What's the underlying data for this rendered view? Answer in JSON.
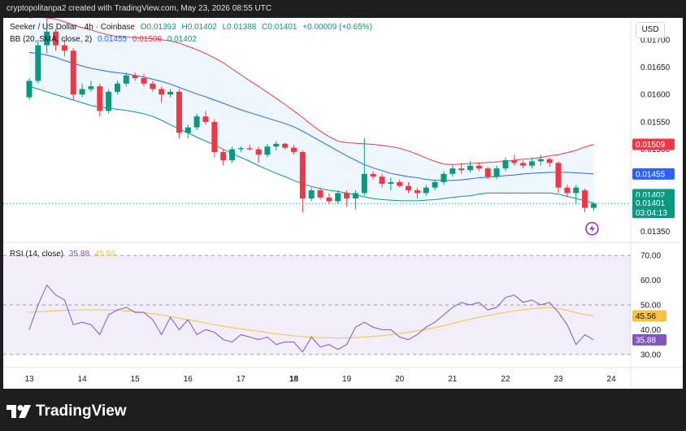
{
  "header": {
    "snapshot_text": "cryptopolitanpa2 created with TradingView.com, May 23, 2026 08:55 UTC"
  },
  "legend": {
    "symbol": "Seeker / US Dollar · 4h · Coinbase",
    "ohlc": {
      "o": "O0.01393",
      "h": "H0.01402",
      "l": "L0.01388",
      "c": "C0.01401",
      "chg": "+0.00009 (+0.65%)"
    },
    "bb_label": "BB (20, SMA, close, 2)",
    "bb_values": {
      "basis": "0.01455",
      "upper": "0.01509",
      "lower": "0.01402"
    }
  },
  "currency_button": "USD",
  "rsi_legend": {
    "label": "RSI (14, close)",
    "rsi": "35.88",
    "ma": "45.56"
  },
  "logo_text": "TradingView",
  "colors": {
    "up": "#089981",
    "down": "#f23645",
    "basis": "#2962ff",
    "upper": "#f23645",
    "lower": "#089981",
    "rsi": "#7e57c2",
    "rsi_ma": "#f5c242"
  },
  "chart_data": [
    {
      "type": "candlestick",
      "title": "Seeker / US Dollar · 4h · Coinbase",
      "ylim": [
        0.0133,
        0.0174
      ],
      "y_ticks": [
        "0.01700",
        "0.01650",
        "0.01600",
        "0.01550",
        "0.01500",
        "0.01450",
        "0.01400",
        "0.01350"
      ],
      "y_tick_values": [
        0.017,
        0.0165,
        0.016,
        0.0155,
        0.015,
        0.0145,
        0.014,
        0.0135
      ],
      "x_ticks": [
        "13",
        "14",
        "15",
        "16",
        "17",
        "18",
        "19",
        "20",
        "21",
        "22",
        "23",
        "24"
      ],
      "x_tick_values": [
        0,
        6,
        12,
        18,
        24,
        30,
        36,
        42,
        48,
        54,
        60,
        66
      ],
      "price_badges": {
        "upper": "0.01509",
        "basis": "0.01455",
        "high": "0.01402",
        "close": "0.01401",
        "countdown": "03:04:13"
      },
      "candles": [
        [
          0.01595,
          0.0163,
          0.0159,
          0.01625
        ],
        [
          0.01625,
          0.017,
          0.0162,
          0.0169
        ],
        [
          0.0169,
          0.0174,
          0.01675,
          0.01715
        ],
        [
          0.01715,
          0.0172,
          0.0168,
          0.0169
        ],
        [
          0.0169,
          0.017,
          0.0167,
          0.0168
        ],
        [
          0.0168,
          0.01685,
          0.0159,
          0.016
        ],
        [
          0.016,
          0.0162,
          0.01595,
          0.0161
        ],
        [
          0.0161,
          0.01625,
          0.01605,
          0.01615
        ],
        [
          0.01615,
          0.0162,
          0.0156,
          0.0157
        ],
        [
          0.0157,
          0.0161,
          0.01565,
          0.01605
        ],
        [
          0.01605,
          0.01625,
          0.016,
          0.0162
        ],
        [
          0.0162,
          0.0164,
          0.01615,
          0.01635
        ],
        [
          0.01635,
          0.0164,
          0.01625,
          0.0163
        ],
        [
          0.0163,
          0.01638,
          0.01615,
          0.0162
        ],
        [
          0.0162,
          0.01625,
          0.01605,
          0.0161
        ],
        [
          0.0161,
          0.01615,
          0.01585,
          0.016
        ],
        [
          0.016,
          0.0161,
          0.01595,
          0.01605
        ],
        [
          0.01605,
          0.0161,
          0.0152,
          0.0153
        ],
        [
          0.0153,
          0.01545,
          0.0152,
          0.0154
        ],
        [
          0.0154,
          0.01565,
          0.01535,
          0.0156
        ],
        [
          0.0156,
          0.0157,
          0.01545,
          0.0155
        ],
        [
          0.0155,
          0.01555,
          0.01485,
          0.01495
        ],
        [
          0.01495,
          0.015,
          0.0147,
          0.0148
        ],
        [
          0.0148,
          0.01505,
          0.01475,
          0.015
        ],
        [
          0.015,
          0.01505,
          0.01495,
          0.01502
        ],
        [
          0.01502,
          0.01508,
          0.01497,
          0.015
        ],
        [
          0.015,
          0.01505,
          0.01475,
          0.0149
        ],
        [
          0.0149,
          0.0151,
          0.01485,
          0.01505
        ],
        [
          0.01505,
          0.01515,
          0.01498,
          0.0151
        ],
        [
          0.0151,
          0.01512,
          0.015,
          0.01503
        ],
        [
          0.01503,
          0.01508,
          0.0149,
          0.01495
        ],
        [
          0.01495,
          0.01498,
          0.01385,
          0.0141
        ],
        [
          0.0141,
          0.0143,
          0.01405,
          0.01425
        ],
        [
          0.01425,
          0.0143,
          0.01408,
          0.01412
        ],
        [
          0.01412,
          0.0142,
          0.014,
          0.01405
        ],
        [
          0.01405,
          0.01425,
          0.014,
          0.0142
        ],
        [
          0.0142,
          0.01425,
          0.01395,
          0.0141
        ],
        [
          0.0141,
          0.01425,
          0.0139,
          0.0142
        ],
        [
          0.0142,
          0.0152,
          0.01415,
          0.01455
        ],
        [
          0.01455,
          0.0146,
          0.01445,
          0.0145
        ],
        [
          0.0145,
          0.01455,
          0.0143,
          0.01437
        ],
        [
          0.01437,
          0.01448,
          0.01425,
          0.0144
        ],
        [
          0.0144,
          0.01445,
          0.0143,
          0.01433
        ],
        [
          0.01433,
          0.0144,
          0.0142,
          0.01425
        ],
        [
          0.01425,
          0.0143,
          0.0141,
          0.0142
        ],
        [
          0.0142,
          0.01435,
          0.01415,
          0.0143
        ],
        [
          0.0143,
          0.01445,
          0.01425,
          0.0144
        ],
        [
          0.0144,
          0.0146,
          0.01435,
          0.01455
        ],
        [
          0.01455,
          0.0147,
          0.0145,
          0.01465
        ],
        [
          0.01465,
          0.01475,
          0.01455,
          0.01462
        ],
        [
          0.01462,
          0.01478,
          0.01458,
          0.0147
        ],
        [
          0.0147,
          0.01475,
          0.0146,
          0.01465
        ],
        [
          0.01465,
          0.01468,
          0.01445,
          0.0145
        ],
        [
          0.0145,
          0.0147,
          0.01445,
          0.01465
        ],
        [
          0.01465,
          0.01485,
          0.0146,
          0.0148
        ],
        [
          0.0148,
          0.0149,
          0.0147,
          0.01475
        ],
        [
          0.01475,
          0.0148,
          0.01465,
          0.0147
        ],
        [
          0.0147,
          0.01485,
          0.01465,
          0.01478
        ],
        [
          0.01478,
          0.0149,
          0.0147,
          0.01482
        ],
        [
          0.01482,
          0.01485,
          0.01468,
          0.01475
        ],
        [
          0.01475,
          0.01478,
          0.0142,
          0.0143
        ],
        [
          0.0143,
          0.01435,
          0.01412,
          0.0142
        ],
        [
          0.0142,
          0.01435,
          0.014,
          0.0143
        ],
        [
          0.01425,
          0.01428,
          0.01385,
          0.01393
        ],
        [
          0.01393,
          0.01402,
          0.01388,
          0.01401
        ]
      ],
      "bb_upper": [
        0.0174,
        0.01742,
        0.0174,
        0.01738,
        0.01733,
        0.01727,
        0.01722,
        0.01718,
        0.01713,
        0.01709,
        0.01706,
        0.01705,
        0.01704,
        0.01703,
        0.01702,
        0.017,
        0.01698,
        0.01694,
        0.01688,
        0.01682,
        0.01675,
        0.01667,
        0.01658,
        0.01647,
        0.01636,
        0.01625,
        0.01615,
        0.01604,
        0.01593,
        0.01582,
        0.0157,
        0.01558,
        0.01545,
        0.01533,
        0.01523,
        0.01515,
        0.01512,
        0.01511,
        0.0151,
        0.01509,
        0.01507,
        0.01505,
        0.01502,
        0.01497,
        0.01491,
        0.01484,
        0.01478,
        0.01473,
        0.01472,
        0.01473,
        0.01474,
        0.01475,
        0.01476,
        0.01477,
        0.01478,
        0.0148,
        0.01482,
        0.01483,
        0.01485,
        0.01488,
        0.0149,
        0.01494,
        0.01498,
        0.01504,
        0.01509
      ],
      "bb_basis": [
        0.01677,
        0.01675,
        0.01672,
        0.01668,
        0.01662,
        0.01657,
        0.01652,
        0.01648,
        0.01645,
        0.01642,
        0.0164,
        0.01638,
        0.01635,
        0.01632,
        0.01628,
        0.01624,
        0.01619,
        0.01613,
        0.01607,
        0.01601,
        0.01596,
        0.0159,
        0.01584,
        0.01578,
        0.01572,
        0.01567,
        0.01562,
        0.01557,
        0.01552,
        0.01547,
        0.01541,
        0.01533,
        0.01524,
        0.01515,
        0.01506,
        0.01497,
        0.01488,
        0.0148,
        0.01472,
        0.01466,
        0.01461,
        0.01456,
        0.01453,
        0.0145,
        0.01448,
        0.01445,
        0.01443,
        0.01443,
        0.01443,
        0.01444,
        0.01446,
        0.01448,
        0.01449,
        0.0145,
        0.01452,
        0.01453,
        0.01455,
        0.01456,
        0.01457,
        0.01458,
        0.01458,
        0.01458,
        0.01457,
        0.01456,
        0.01455
      ],
      "bb_lower": [
        0.01615,
        0.0161,
        0.01605,
        0.016,
        0.01595,
        0.0159,
        0.01585,
        0.0158,
        0.01577,
        0.01575,
        0.01573,
        0.01571,
        0.01568,
        0.01565,
        0.0156,
        0.01553,
        0.01545,
        0.01537,
        0.0153,
        0.01522,
        0.01515,
        0.01508,
        0.015,
        0.01492,
        0.01485,
        0.01478,
        0.0147,
        0.01463,
        0.01456,
        0.0145,
        0.01443,
        0.01437,
        0.01432,
        0.01428,
        0.01425,
        0.01423,
        0.0142,
        0.01417,
        0.01413,
        0.0141,
        0.01408,
        0.01407,
        0.01406,
        0.01406,
        0.01406,
        0.01407,
        0.01408,
        0.0141,
        0.01412,
        0.01414,
        0.01415,
        0.01418,
        0.0142,
        0.0142,
        0.0142,
        0.0142,
        0.0142,
        0.0142,
        0.0142,
        0.0142,
        0.01418,
        0.01414,
        0.0141,
        0.01406,
        0.01402
      ],
      "last_price": 0.01401
    },
    {
      "type": "line",
      "title": "RSI (14, close)",
      "ylim": [
        26,
        72
      ],
      "y_ticks": [
        "70.00",
        "60.00",
        "50.00",
        "40.00",
        "30.00"
      ],
      "y_tick_values": [
        70,
        60,
        50,
        40,
        30
      ],
      "levels": {
        "upper": 70,
        "middle": 50,
        "lower": 30
      },
      "value_badges": {
        "ma": "45.56",
        "rsi": "35.88"
      },
      "series": [
        {
          "name": "RSI",
          "values": [
            40,
            50,
            58,
            54,
            52,
            42,
            43,
            42,
            38,
            46,
            48,
            49,
            47,
            47,
            44,
            38,
            45,
            40,
            44,
            38,
            40,
            39,
            36,
            35,
            38,
            37,
            36,
            37,
            34,
            35,
            35,
            31,
            37,
            33,
            34,
            32,
            34,
            41,
            43,
            41,
            40,
            40,
            37,
            36,
            38,
            41,
            43,
            46,
            49,
            51,
            50,
            51,
            48,
            49,
            53,
            54,
            51,
            52,
            50,
            51,
            47,
            42,
            34,
            38,
            35.88
          ]
        },
        {
          "name": "RSI MA",
          "values": [
            47.0,
            47.2,
            47.4,
            47.6,
            47.8,
            47.9,
            48.0,
            48.0,
            48.0,
            47.9,
            47.8,
            47.6,
            47.3,
            46.9,
            46.4,
            45.9,
            45.3,
            44.7,
            44.0,
            43.4,
            42.7,
            42.0,
            41.4,
            40.8,
            40.3,
            39.8,
            39.3,
            38.8,
            38.3,
            37.9,
            37.5,
            37.2,
            37.0,
            36.8,
            36.7,
            36.6,
            36.7,
            36.8,
            37.0,
            37.3,
            37.6,
            38.0,
            38.5,
            39.0,
            39.5,
            40.1,
            40.8,
            41.6,
            42.5,
            43.4,
            44.2,
            45.0,
            45.7,
            46.4,
            47.0,
            47.6,
            48.1,
            48.5,
            48.8,
            49.0,
            48.5,
            47.8,
            46.9,
            46.1,
            45.56
          ]
        }
      ]
    }
  ]
}
